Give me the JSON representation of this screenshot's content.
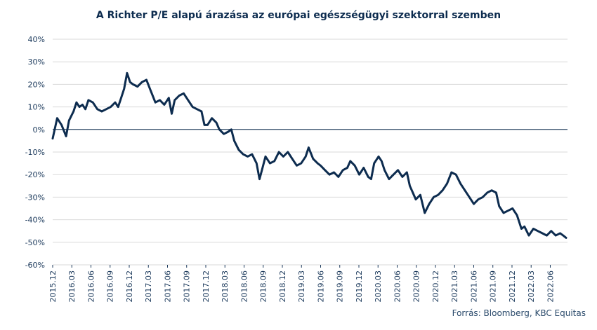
{
  "title": "A Richter P/E  alapú árazása az európai egészségügyi szektorral szemben",
  "source": "Forrás: Bloomberg,  KBC Equitas",
  "colors": {
    "line": "#0d2c4f",
    "grid": "#d9d9d9",
    "zero": "#0d2c4f"
  },
  "chart_data": {
    "type": "line",
    "title": "A Richter P/E  alapú árazása az európai egészségügyi szektorral szemben",
    "xlabel": "",
    "ylabel": "",
    "ylim": [
      -0.6,
      0.4
    ],
    "grid": true,
    "y_ticks": [
      "40%",
      "30%",
      "20%",
      "10%",
      "0%",
      "-10%",
      "-20%",
      "-30%",
      "-40%",
      "-50%",
      "-60%"
    ],
    "x_ticks": [
      "2015.12",
      "2016.03",
      "2016.06",
      "2016.09",
      "2016.12",
      "2017.03",
      "2017.06",
      "2017.09",
      "2017.12",
      "2018.03",
      "2018.06",
      "2018.09",
      "2018.12",
      "2019.03",
      "2019.06",
      "2019.09",
      "2019.12",
      "2020.03",
      "2020.06",
      "2020.09",
      "2020.12",
      "2021.03",
      "2021.06",
      "2021.09",
      "2021.12",
      "2022.03",
      "2022.06"
    ],
    "series": [
      {
        "values": [
          [
            0,
            -0.04
          ],
          [
            0.15,
            0.05
          ],
          [
            0.3,
            0.02
          ],
          [
            0.45,
            -0.03
          ],
          [
            0.55,
            0.04
          ],
          [
            0.7,
            0.08
          ],
          [
            0.8,
            0.12
          ],
          [
            0.9,
            0.1
          ],
          [
            1.0,
            0.11
          ],
          [
            1.1,
            0.09
          ],
          [
            1.2,
            0.13
          ],
          [
            1.35,
            0.12
          ],
          [
            1.5,
            0.09
          ],
          [
            1.65,
            0.08
          ],
          [
            1.8,
            0.09
          ],
          [
            1.95,
            0.1
          ],
          [
            2.1,
            0.12
          ],
          [
            2.2,
            0.1
          ],
          [
            2.3,
            0.14
          ],
          [
            2.4,
            0.18
          ],
          [
            2.5,
            0.25
          ],
          [
            2.6,
            0.21
          ],
          [
            2.7,
            0.2
          ],
          [
            2.85,
            0.19
          ],
          [
            3.0,
            0.21
          ],
          [
            3.15,
            0.22
          ],
          [
            3.3,
            0.17
          ],
          [
            3.45,
            0.12
          ],
          [
            3.6,
            0.13
          ],
          [
            3.75,
            0.11
          ],
          [
            3.9,
            0.14
          ],
          [
            4.0,
            0.07
          ],
          [
            4.1,
            0.13
          ],
          [
            4.25,
            0.15
          ],
          [
            4.4,
            0.16
          ],
          [
            4.55,
            0.13
          ],
          [
            4.7,
            0.1
          ],
          [
            4.85,
            0.09
          ],
          [
            5.0,
            0.08
          ],
          [
            5.1,
            0.02
          ],
          [
            5.2,
            0.02
          ],
          [
            5.35,
            0.05
          ],
          [
            5.5,
            0.03
          ],
          [
            5.6,
            0.0
          ],
          [
            5.75,
            -0.02
          ],
          [
            5.9,
            -0.01
          ],
          [
            6.0,
            0.0
          ],
          [
            6.1,
            -0.05
          ],
          [
            6.25,
            -0.09
          ],
          [
            6.4,
            -0.11
          ],
          [
            6.55,
            -0.12
          ],
          [
            6.7,
            -0.11
          ],
          [
            6.85,
            -0.15
          ],
          [
            6.95,
            -0.22
          ],
          [
            7.05,
            -0.17
          ],
          [
            7.15,
            -0.12
          ],
          [
            7.3,
            -0.15
          ],
          [
            7.45,
            -0.14
          ],
          [
            7.6,
            -0.1
          ],
          [
            7.75,
            -0.12
          ],
          [
            7.9,
            -0.1
          ],
          [
            8.05,
            -0.13
          ],
          [
            8.2,
            -0.16
          ],
          [
            8.35,
            -0.15
          ],
          [
            8.5,
            -0.12
          ],
          [
            8.6,
            -0.08
          ],
          [
            8.75,
            -0.13
          ],
          [
            8.9,
            -0.15
          ],
          [
            9.0,
            -0.16
          ],
          [
            9.15,
            -0.18
          ],
          [
            9.3,
            -0.2
          ],
          [
            9.45,
            -0.19
          ],
          [
            9.6,
            -0.21
          ],
          [
            9.75,
            -0.18
          ],
          [
            9.9,
            -0.17
          ],
          [
            10.0,
            -0.14
          ],
          [
            10.15,
            -0.16
          ],
          [
            10.3,
            -0.2
          ],
          [
            10.45,
            -0.17
          ],
          [
            10.6,
            -0.21
          ],
          [
            10.7,
            -0.22
          ],
          [
            10.8,
            -0.15
          ],
          [
            10.95,
            -0.12
          ],
          [
            11.05,
            -0.14
          ],
          [
            11.15,
            -0.18
          ],
          [
            11.3,
            -0.22
          ],
          [
            11.45,
            -0.2
          ],
          [
            11.6,
            -0.18
          ],
          [
            11.75,
            -0.21
          ],
          [
            11.9,
            -0.19
          ],
          [
            12.0,
            -0.25
          ],
          [
            12.1,
            -0.28
          ],
          [
            12.2,
            -0.31
          ],
          [
            12.35,
            -0.29
          ],
          [
            12.5,
            -0.37
          ],
          [
            12.65,
            -0.33
          ],
          [
            12.8,
            -0.3
          ],
          [
            12.95,
            -0.29
          ],
          [
            13.1,
            -0.27
          ],
          [
            13.25,
            -0.24
          ],
          [
            13.4,
            -0.19
          ],
          [
            13.55,
            -0.2
          ],
          [
            13.7,
            -0.24
          ],
          [
            13.85,
            -0.27
          ],
          [
            14.0,
            -0.3
          ],
          [
            14.15,
            -0.33
          ],
          [
            14.3,
            -0.31
          ],
          [
            14.45,
            -0.3
          ],
          [
            14.6,
            -0.28
          ],
          [
            14.75,
            -0.27
          ],
          [
            14.9,
            -0.28
          ],
          [
            15.0,
            -0.34
          ],
          [
            15.15,
            -0.37
          ],
          [
            15.3,
            -0.36
          ],
          [
            15.45,
            -0.35
          ],
          [
            15.6,
            -0.38
          ],
          [
            15.75,
            -0.44
          ],
          [
            15.85,
            -0.43
          ],
          [
            16.0,
            -0.47
          ],
          [
            16.15,
            -0.44
          ],
          [
            16.3,
            -0.45
          ],
          [
            16.45,
            -0.46
          ],
          [
            16.6,
            -0.47
          ],
          [
            16.75,
            -0.45
          ],
          [
            16.9,
            -0.47
          ],
          [
            17.05,
            -0.46
          ],
          [
            17.15,
            -0.47
          ],
          [
            17.25,
            -0.48
          ]
        ]
      }
    ]
  }
}
